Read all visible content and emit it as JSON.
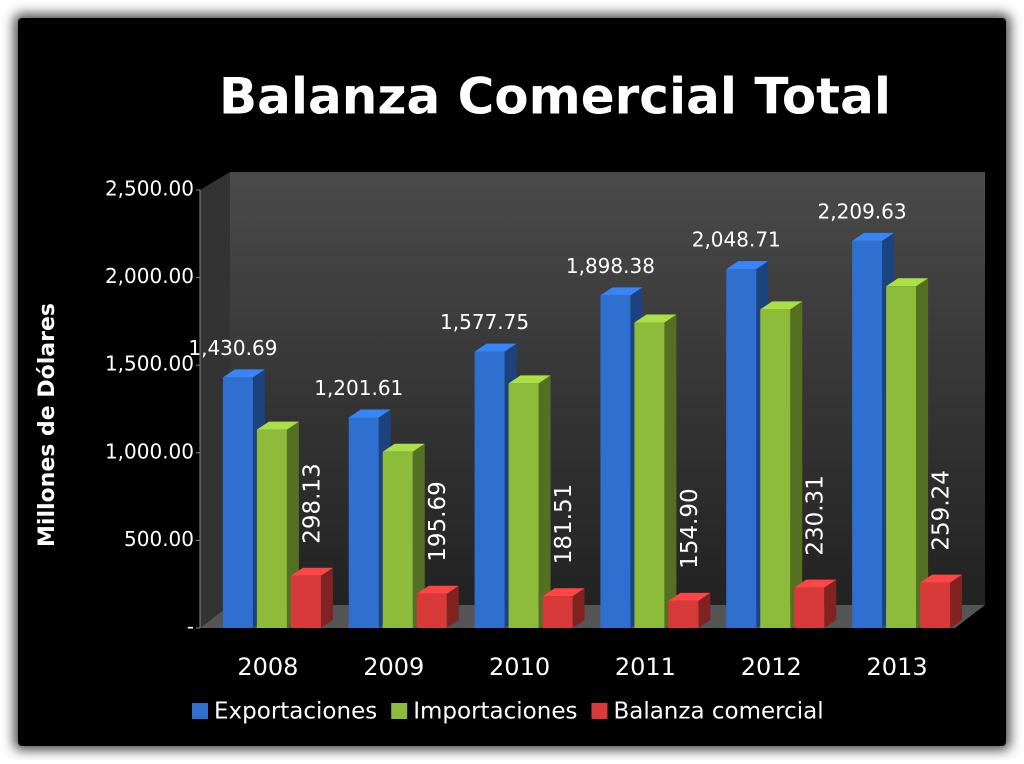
{
  "chart_data": {
    "type": "bar3d",
    "title": "Balanza Comercial Total",
    "y_label": "Millones de Dólares",
    "categories": [
      "2008",
      "2009",
      "2010",
      "2011",
      "2012",
      "2013"
    ],
    "series": [
      {
        "name": "Exportaciones",
        "color": "#2f6fd0",
        "values": [
          1430.69,
          1201.61,
          1577.75,
          1898.38,
          2048.71,
          2209.63
        ],
        "value_labels": [
          "1,430.69",
          "1,201.61",
          "1,577.75",
          "1,898.38",
          "2,048.71",
          "2,209.63"
        ]
      },
      {
        "name": "Importaciones",
        "color": "#8dbb3a",
        "values": [
          1132.56,
          1005.92,
          1396.24,
          1743.48,
          1818.4,
          1950.39
        ]
      },
      {
        "name": "Balanza comercial",
        "color": "#d83a3a",
        "values": [
          298.13,
          195.69,
          181.51,
          154.9,
          230.31,
          259.24
        ],
        "value_labels": [
          "298.13",
          "195.69",
          "181.51",
          "154.90",
          "230.31",
          "259.24"
        ]
      }
    ],
    "ylim": [
      0,
      2500
    ],
    "yticks": [
      {
        "value": 0,
        "label": "-"
      },
      {
        "value": 500,
        "label": "500.00"
      },
      {
        "value": 1000,
        "label": "1,000.00"
      },
      {
        "value": 1500,
        "label": "1,500.00"
      },
      {
        "value": 2000,
        "label": "2,000.00"
      },
      {
        "value": 2500,
        "label": "2,500.00"
      }
    ],
    "grid": false,
    "legend": "bottom"
  }
}
